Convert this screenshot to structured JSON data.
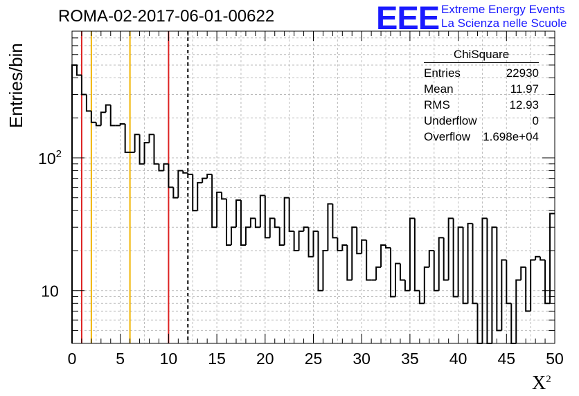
{
  "header": {
    "title": "ROMA-02-2017-06-01-00622",
    "logo_mark": "EEE",
    "logo_line1": "Extreme Energy Events",
    "logo_line2": "La Scienza nelle Scuole"
  },
  "stats": {
    "title": "ChiSquare",
    "rows": [
      {
        "label": "Entries",
        "value": "22930"
      },
      {
        "label": "Mean",
        "value": "11.97"
      },
      {
        "label": "RMS",
        "value": "12.93"
      },
      {
        "label": "Underflow",
        "value": "0"
      },
      {
        "label": "Overflow",
        "value": "1.698e+04"
      }
    ]
  },
  "colors": {
    "histogram": "#000000",
    "grid": "#bbbbbb",
    "red_line": "#dd2222",
    "yellow_line": "#f0b400",
    "dashed_line": "#000000",
    "logo": "#1a1aff"
  },
  "chart_data": {
    "type": "histogram",
    "title": "ROMA-02-2017-06-01-00622",
    "xlabel": "X",
    "xlabel_sup": "2",
    "ylabel": "Entries/bin",
    "xlim": [
      0,
      50
    ],
    "ylim": [
      4,
      900
    ],
    "yscale": "log",
    "grid": true,
    "bin_width": 0.5,
    "x_ticks": [
      0,
      5,
      10,
      15,
      20,
      25,
      30,
      35,
      40,
      45,
      50
    ],
    "x_tick_labels": [
      "0",
      "5",
      "10",
      "15",
      "20",
      "25",
      "30",
      "35",
      "40",
      "45",
      "50"
    ],
    "y_tick_labels": [
      {
        "value": 10,
        "base": "10",
        "exp": ""
      },
      {
        "value": 100,
        "base": "10",
        "exp": "2"
      }
    ],
    "values": [
      500,
      420,
      300,
      225,
      185,
      175,
      220,
      250,
      175,
      175,
      180,
      110,
      110,
      150,
      90,
      130,
      150,
      90,
      80,
      90,
      60,
      50,
      80,
      77,
      75,
      40,
      65,
      70,
      75,
      30,
      55,
      49,
      22,
      30,
      48,
      22,
      30,
      35,
      30,
      52,
      25,
      35,
      30,
      22,
      50,
      28,
      20,
      28,
      30,
      18,
      28,
      10,
      20,
      45,
      25,
      20,
      22,
      12,
      30,
      19,
      24,
      12,
      12,
      15,
      22,
      21,
      9,
      16,
      12,
      10,
      35,
      10,
      8,
      15,
      20,
      10,
      25,
      12,
      35,
      9,
      30,
      8,
      32,
      8,
      4,
      35,
      4,
      30,
      5,
      17,
      8,
      4,
      12,
      15,
      7,
      17,
      18,
      17,
      8,
      38
    ],
    "vertical_lines": [
      {
        "x": 1,
        "style": "red"
      },
      {
        "x": 2,
        "style": "yellow"
      },
      {
        "x": 6,
        "style": "yellow"
      },
      {
        "x": 10,
        "style": "red"
      },
      {
        "x": 12,
        "style": "dashed"
      }
    ]
  }
}
